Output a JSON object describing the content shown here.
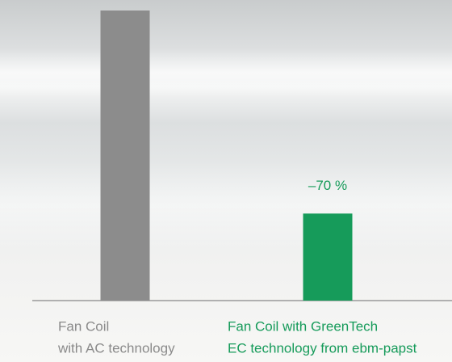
{
  "chart_data": {
    "type": "bar",
    "categories": [
      [
        "Fan Coil",
        "with AC technology"
      ],
      [
        "Fan Coil with GreenTech",
        "EC technology from ebm-papst"
      ]
    ],
    "values": [
      100,
      30
    ],
    "colors": [
      "#8c8c8c",
      "#169b5a"
    ],
    "label_colors": [
      "#8a8a8a",
      "#169b5a"
    ],
    "annotation": "–70 %",
    "ylim": [
      0,
      100
    ]
  }
}
